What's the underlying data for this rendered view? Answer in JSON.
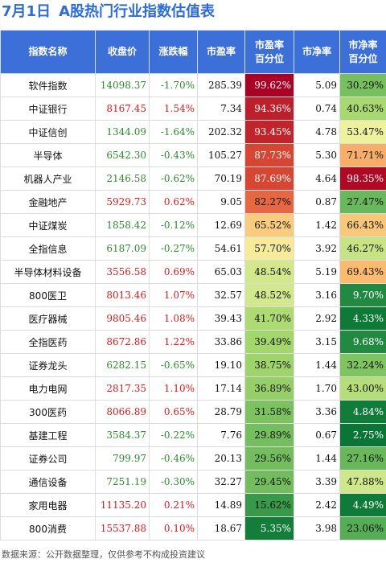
{
  "title": {
    "date": "7月1日",
    "text": "A股热门行业指数估值表"
  },
  "columns": [
    "指数名称",
    "收盘价",
    "涨跌幅",
    "市盈率",
    "市盈率\n百分位",
    "市净率",
    "市净率\n百分位"
  ],
  "footer": "数据来源：公开数据整理，仅供参考不构成投资建议",
  "colors": {
    "header": "#3c6fd8",
    "up": "#d61c1c",
    "down": "#2f8a2f"
  },
  "chart_data": {
    "type": "table",
    "rows": [
      {
        "name": "软件指数",
        "close": "14098.37",
        "change": "-1.70%",
        "pe": "285.39",
        "pe_pct": "99.62%",
        "pb": "5.09",
        "pb_pct": "30.29%"
      },
      {
        "name": "中证银行",
        "close": "8167.45",
        "change": "1.54%",
        "pe": "7.34",
        "pe_pct": "94.36%",
        "pb": "0.74",
        "pb_pct": "40.63%"
      },
      {
        "name": "中证信创",
        "close": "1344.09",
        "change": "-1.64%",
        "pe": "202.32",
        "pe_pct": "93.45%",
        "pb": "4.78",
        "pb_pct": "53.47%"
      },
      {
        "name": "半导体",
        "close": "6542.30",
        "change": "-0.43%",
        "pe": "105.27",
        "pe_pct": "87.73%",
        "pb": "5.30",
        "pb_pct": "71.71%"
      },
      {
        "name": "机器人产业",
        "close": "2146.58",
        "change": "-0.62%",
        "pe": "70.19",
        "pe_pct": "87.69%",
        "pb": "4.64",
        "pb_pct": "98.35%"
      },
      {
        "name": "金融地产",
        "close": "5929.73",
        "change": "0.62%",
        "pe": "9.05",
        "pe_pct": "82.27%",
        "pb": "0.87",
        "pb_pct": "27.47%"
      },
      {
        "name": "中证煤炭",
        "close": "1858.42",
        "change": "-0.12%",
        "pe": "12.69",
        "pe_pct": "65.52%",
        "pb": "1.42",
        "pb_pct": "66.43%"
      },
      {
        "name": "全指信息",
        "close": "6187.09",
        "change": "-0.27%",
        "pe": "54.61",
        "pe_pct": "57.70%",
        "pb": "3.92",
        "pb_pct": "46.27%"
      },
      {
        "name": "半导体材料设备",
        "close": "3556.58",
        "change": "0.69%",
        "pe": "65.03",
        "pe_pct": "48.54%",
        "pb": "5.19",
        "pb_pct": "69.43%"
      },
      {
        "name": "800医卫",
        "close": "8013.46",
        "change": "1.07%",
        "pe": "32.57",
        "pe_pct": "48.52%",
        "pb": "3.16",
        "pb_pct": "9.70%"
      },
      {
        "name": "医疗器械",
        "close": "9805.46",
        "change": "1.08%",
        "pe": "39.43",
        "pe_pct": "41.70%",
        "pb": "2.92",
        "pb_pct": "4.33%"
      },
      {
        "name": "全指医药",
        "close": "8672.86",
        "change": "1.22%",
        "pe": "33.86",
        "pe_pct": "39.49%",
        "pb": "3.15",
        "pb_pct": "9.68%"
      },
      {
        "name": "证券龙头",
        "close": "6282.15",
        "change": "-0.65%",
        "pe": "19.10",
        "pe_pct": "38.75%",
        "pb": "1.44",
        "pb_pct": "32.24%"
      },
      {
        "name": "电力电网",
        "close": "2817.35",
        "change": "1.10%",
        "pe": "17.14",
        "pe_pct": "36.89%",
        "pb": "1.70",
        "pb_pct": "43.00%"
      },
      {
        "name": "300医药",
        "close": "8066.89",
        "change": "0.65%",
        "pe": "28.79",
        "pe_pct": "31.58%",
        "pb": "3.36",
        "pb_pct": "4.84%"
      },
      {
        "name": "基建工程",
        "close": "3584.37",
        "change": "-0.22%",
        "pe": "7.76",
        "pe_pct": "29.89%",
        "pb": "0.67",
        "pb_pct": "2.75%"
      },
      {
        "name": "证券公司",
        "close": "799.97",
        "change": "-0.46%",
        "pe": "20.13",
        "pe_pct": "29.56%",
        "pb": "1.44",
        "pb_pct": "27.16%"
      },
      {
        "name": "通信设备",
        "close": "7251.19",
        "change": "-0.30%",
        "pe": "32.27",
        "pe_pct": "29.45%",
        "pb": "3.39",
        "pb_pct": "47.88%"
      },
      {
        "name": "家用电器",
        "close": "11135.20",
        "change": "0.21%",
        "pe": "14.89",
        "pe_pct": "15.62%",
        "pb": "2.42",
        "pb_pct": "4.49%"
      },
      {
        "name": "800消费",
        "close": "15537.88",
        "change": "0.10%",
        "pe": "18.67",
        "pe_pct": "5.35%",
        "pb": "3.98",
        "pb_pct": "23.06%"
      }
    ]
  }
}
